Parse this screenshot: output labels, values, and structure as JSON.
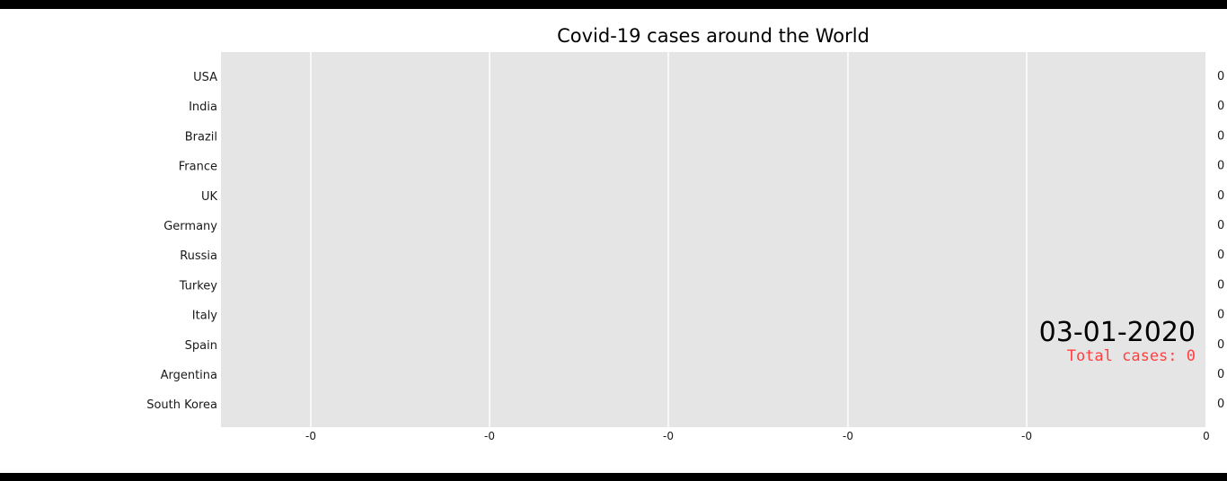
{
  "chart_data": {
    "type": "bar",
    "orientation": "horizontal",
    "title": "Covid-19 cases around the World",
    "categories": [
      "USA",
      "India",
      "Brazil",
      "France",
      "UK",
      "Germany",
      "Russia",
      "Turkey",
      "Italy",
      "Spain",
      "Argentina",
      "South Korea"
    ],
    "values": [
      0,
      0,
      0,
      0,
      0,
      0,
      0,
      0,
      0,
      0,
      0,
      0
    ],
    "value_labels": [
      "0",
      "0",
      "0",
      "0",
      "0",
      "0",
      "0",
      "0",
      "0",
      "0",
      "0",
      "0"
    ],
    "x_tick_labels": [
      "-0",
      "-0",
      "-0",
      "-0",
      "-0",
      "0"
    ],
    "date_label": "03-01-2020",
    "total_label": "Total cases: 0",
    "grid": true,
    "colors": {
      "plot_background": "#e5e5e5",
      "grid": "#ffffff",
      "total_text": "#ff4040"
    }
  }
}
